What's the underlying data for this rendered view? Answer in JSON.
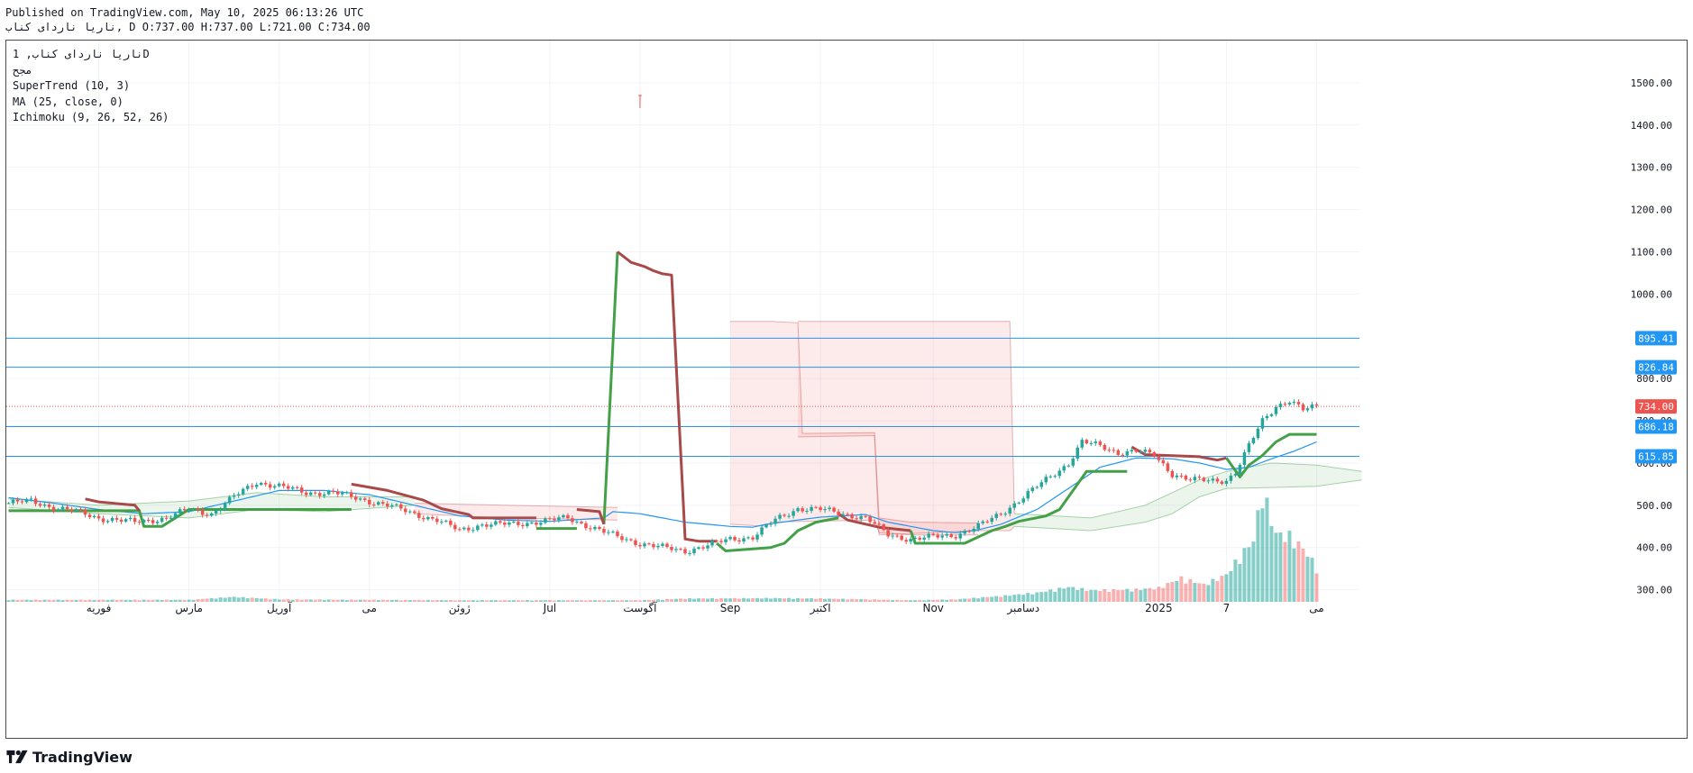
{
  "header": {
    "published": "Published on TradingView.com, May 10, 2025 06:13:26 UTC",
    "ohlc": "ناریا ناردای کناب, D O:737.00 H:737.00 L:721.00 C:734.00"
  },
  "legend": [
    "ناریا ناردای کناب, 1D",
    "مجح",
    "SuperTrend (10, 3)",
    "MA (25, close, 0)",
    "Ichimoku (9, 26, 52, 26)"
  ],
  "footer": {
    "brand": "TradingView"
  },
  "colors": {
    "up": "#26a69a",
    "down": "#ef5350",
    "supertrend_up": "#43a047",
    "supertrend_down": "#a84a4a",
    "ma": "#2196f3",
    "hline": "#2196f3",
    "last_price": "#ef5350"
  },
  "chart_data": {
    "type": "candlestick",
    "y_axis": {
      "min": 280,
      "max": 1600,
      "ticks": [
        300,
        400,
        500,
        600,
        700,
        800,
        1000,
        1100,
        1200,
        1300,
        1400,
        1500
      ],
      "tick_labels": [
        "300.00",
        "400.00",
        "500.00",
        "600.00",
        "700.00",
        "800.00",
        "1000.00",
        "1100.00",
        "1200.00",
        "1300.00",
        "1400.00",
        "1500.00"
      ]
    },
    "x_axis": {
      "labels": [
        "فوریه",
        "مارس",
        "آوریل",
        "می",
        "ژوئن",
        "Jul",
        "آگوست",
        "Sep",
        "اکتبر",
        "Nov",
        "دسامبر",
        "2025",
        "7",
        "می"
      ],
      "label_bar_index": [
        20,
        40,
        60,
        80,
        100,
        120,
        140,
        160,
        180,
        205,
        225,
        255,
        270,
        290
      ]
    },
    "bars_total": 300,
    "horizontal_lines": [
      {
        "value": 895.41,
        "label": "895.41"
      },
      {
        "value": 826.84,
        "label": "826.84"
      },
      {
        "value": 686.18,
        "label": "686.18"
      },
      {
        "value": 615.85,
        "label": "615.85"
      }
    ],
    "last_price": {
      "value": 734.0,
      "label": "734.00"
    },
    "price_anchors": [
      [
        0,
        505
      ],
      [
        5,
        510
      ],
      [
        10,
        495
      ],
      [
        15,
        485
      ],
      [
        20,
        470
      ],
      [
        28,
        460
      ],
      [
        35,
        470
      ],
      [
        40,
        490
      ],
      [
        45,
        480
      ],
      [
        50,
        520
      ],
      [
        55,
        555
      ],
      [
        60,
        545
      ],
      [
        66,
        530
      ],
      [
        72,
        530
      ],
      [
        78,
        515
      ],
      [
        84,
        500
      ],
      [
        90,
        480
      ],
      [
        95,
        465
      ],
      [
        100,
        440
      ],
      [
        105,
        455
      ],
      [
        112,
        455
      ],
      [
        118,
        462
      ],
      [
        124,
        470
      ],
      [
        130,
        445
      ],
      [
        135,
        425
      ],
      [
        140,
        410
      ],
      [
        146,
        398
      ],
      [
        150,
        392
      ],
      [
        155,
        405
      ],
      [
        160,
        420
      ],
      [
        165,
        425
      ],
      [
        170,
        465
      ],
      [
        175,
        493
      ],
      [
        180,
        490
      ],
      [
        185,
        480
      ],
      [
        190,
        470
      ],
      [
        195,
        430
      ],
      [
        200,
        420
      ],
      [
        205,
        425
      ],
      [
        210,
        430
      ],
      [
        215,
        450
      ],
      [
        220,
        480
      ],
      [
        225,
        520
      ],
      [
        230,
        560
      ],
      [
        235,
        600
      ],
      [
        238,
        650
      ],
      [
        242,
        640
      ],
      [
        246,
        625
      ],
      [
        250,
        628
      ],
      [
        254,
        618
      ],
      [
        258,
        575
      ],
      [
        262,
        560
      ],
      [
        266,
        558
      ],
      [
        270,
        560
      ],
      [
        272,
        578
      ],
      [
        275,
        640
      ],
      [
        278,
        700
      ],
      [
        281,
        735
      ],
      [
        284,
        748
      ],
      [
        287,
        725
      ],
      [
        290,
        734
      ]
    ],
    "volume_anchors": [
      [
        0,
        5
      ],
      [
        40,
        5
      ],
      [
        50,
        12
      ],
      [
        60,
        6
      ],
      [
        100,
        4
      ],
      [
        140,
        4
      ],
      [
        150,
        8
      ],
      [
        170,
        9
      ],
      [
        180,
        8
      ],
      [
        200,
        4
      ],
      [
        210,
        6
      ],
      [
        220,
        14
      ],
      [
        228,
        22
      ],
      [
        235,
        36
      ],
      [
        240,
        28
      ],
      [
        250,
        30
      ],
      [
        255,
        34
      ],
      [
        260,
        58
      ],
      [
        265,
        42
      ],
      [
        270,
        66
      ],
      [
        273,
        110
      ],
      [
        276,
        150
      ],
      [
        278,
        270
      ],
      [
        281,
        165
      ],
      [
        284,
        160
      ],
      [
        287,
        130
      ],
      [
        290,
        85
      ]
    ],
    "volume_max": 300,
    "supertrend": {
      "down_segments": [
        [
          [
            17,
            515
          ],
          [
            20,
            508
          ],
          [
            28,
            500
          ],
          [
            29,
            487
          ]
        ],
        [
          [
            76,
            550
          ],
          [
            84,
            535
          ],
          [
            92,
            512
          ],
          [
            96,
            492
          ],
          [
            102,
            478
          ],
          [
            103,
            470
          ],
          [
            117,
            470
          ]
        ],
        [
          [
            126,
            490
          ],
          [
            131,
            485
          ],
          [
            132,
            455
          ]
        ],
        [
          [
            135,
            1100
          ],
          [
            138,
            1075
          ],
          [
            141,
            1065
          ],
          [
            143,
            1055
          ],
          [
            145,
            1048
          ],
          [
            147,
            1045
          ],
          [
            150,
            420
          ],
          [
            153,
            415
          ],
          [
            157,
            415
          ]
        ],
        [
          [
            184,
            480
          ],
          [
            186,
            465
          ],
          [
            193,
            448
          ],
          [
            200,
            440
          ]
        ],
        [
          [
            249,
            638
          ],
          [
            252,
            620
          ],
          [
            264,
            615
          ],
          [
            268,
            607
          ],
          [
            270,
            612
          ]
        ]
      ],
      "up_segments": [
        [
          [
            0,
            487
          ],
          [
            29,
            487
          ],
          [
            30,
            450
          ],
          [
            34,
            450
          ],
          [
            37,
            470
          ],
          [
            40,
            490
          ],
          [
            76,
            490
          ]
        ],
        [
          [
            117,
            445
          ],
          [
            126,
            445
          ]
        ],
        [
          [
            132,
            455
          ],
          [
            135,
            1100
          ]
        ],
        [
          [
            157,
            410
          ],
          [
            159,
            392
          ],
          [
            169,
            400
          ],
          [
            172,
            410
          ],
          [
            175,
            440
          ],
          [
            179,
            460
          ],
          [
            184,
            470
          ]
        ],
        [
          [
            200,
            440
          ],
          [
            201,
            410
          ],
          [
            212,
            410
          ],
          [
            215,
            425
          ],
          [
            218,
            440
          ],
          [
            221,
            450
          ],
          [
            224,
            462
          ],
          [
            230,
            475
          ],
          [
            233,
            490
          ],
          [
            236,
            535
          ],
          [
            239,
            580
          ],
          [
            248,
            580
          ]
        ],
        [
          [
            270,
            612
          ],
          [
            273,
            567
          ],
          [
            275,
            595
          ],
          [
            278,
            618
          ],
          [
            281,
            650
          ],
          [
            284,
            668
          ],
          [
            290,
            668
          ]
        ]
      ]
    },
    "ma_anchors": [
      [
        0,
        518
      ],
      [
        10,
        505
      ],
      [
        20,
        490
      ],
      [
        30,
        480
      ],
      [
        40,
        485
      ],
      [
        50,
        510
      ],
      [
        60,
        535
      ],
      [
        70,
        535
      ],
      [
        80,
        525
      ],
      [
        90,
        500
      ],
      [
        100,
        475
      ],
      [
        110,
        465
      ],
      [
        120,
        462
      ],
      [
        132,
        470
      ],
      [
        134,
        485
      ],
      [
        140,
        480
      ],
      [
        150,
        460
      ],
      [
        160,
        450
      ],
      [
        165,
        448
      ],
      [
        168,
        455
      ],
      [
        175,
        465
      ],
      [
        180,
        472
      ],
      [
        190,
        478
      ],
      [
        195,
        460
      ],
      [
        200,
        450
      ],
      [
        205,
        440
      ],
      [
        210,
        435
      ],
      [
        215,
        442
      ],
      [
        220,
        455
      ],
      [
        228,
        490
      ],
      [
        235,
        540
      ],
      [
        242,
        590
      ],
      [
        250,
        612
      ],
      [
        258,
        610
      ],
      [
        264,
        600
      ],
      [
        270,
        585
      ],
      [
        275,
        590
      ],
      [
        280,
        610
      ],
      [
        285,
        628
      ],
      [
        290,
        650
      ]
    ],
    "ichimoku_cloud": [
      {
        "from": 0,
        "to": 90,
        "polarity": "bull",
        "top": [
          [
            0,
            515
          ],
          [
            20,
            500
          ],
          [
            40,
            510
          ],
          [
            55,
            530
          ],
          [
            70,
            520
          ],
          [
            90,
            520
          ]
        ],
        "bottom": [
          [
            0,
            495
          ],
          [
            20,
            480
          ],
          [
            40,
            470
          ],
          [
            55,
            490
          ],
          [
            70,
            485
          ],
          [
            90,
            500
          ]
        ]
      },
      {
        "from": 90,
        "to": 135,
        "polarity": "bear",
        "top": [
          [
            90,
            505
          ],
          [
            110,
            500
          ],
          [
            135,
            495
          ]
        ],
        "bottom": [
          [
            90,
            480
          ],
          [
            110,
            470
          ],
          [
            135,
            465
          ]
        ]
      },
      {
        "from": 160,
        "to": 215,
        "polarity": "bear",
        "top": [
          [
            160,
            935
          ],
          [
            168,
            935
          ],
          [
            169,
            935
          ],
          [
            175,
            932
          ],
          [
            176,
            670
          ],
          [
            192,
            672
          ],
          [
            193,
            470
          ],
          [
            200,
            460
          ],
          [
            215,
            458
          ]
        ],
        "bottom": [
          [
            160,
            455
          ],
          [
            168,
            450
          ],
          [
            169,
            460
          ],
          [
            175,
            462
          ],
          [
            176,
            462
          ],
          [
            192,
            465
          ],
          [
            193,
            435
          ],
          [
            200,
            430
          ],
          [
            215,
            430
          ]
        ]
      },
      {
        "from": 175,
        "to": 223,
        "polarity": "bear",
        "top": [
          [
            175,
            935
          ],
          [
            222,
            935
          ],
          [
            223,
            480
          ]
        ],
        "bottom": [
          [
            175,
            662
          ],
          [
            192,
            665
          ],
          [
            193,
            430
          ],
          [
            215,
            440
          ],
          [
            222,
            440
          ],
          [
            223,
            450
          ]
        ]
      },
      {
        "from": 223,
        "to": 300,
        "polarity": "bull",
        "top": [
          [
            223,
            480
          ],
          [
            240,
            470
          ],
          [
            252,
            500
          ],
          [
            258,
            530
          ],
          [
            264,
            560
          ],
          [
            270,
            580
          ],
          [
            280,
            600
          ],
          [
            290,
            595
          ],
          [
            300,
            580
          ]
        ],
        "bottom": [
          [
            223,
            450
          ],
          [
            240,
            440
          ],
          [
            252,
            460
          ],
          [
            258,
            480
          ],
          [
            264,
            520
          ],
          [
            270,
            540
          ],
          [
            280,
            542
          ],
          [
            290,
            545
          ],
          [
            300,
            560
          ]
        ]
      }
    ]
  }
}
